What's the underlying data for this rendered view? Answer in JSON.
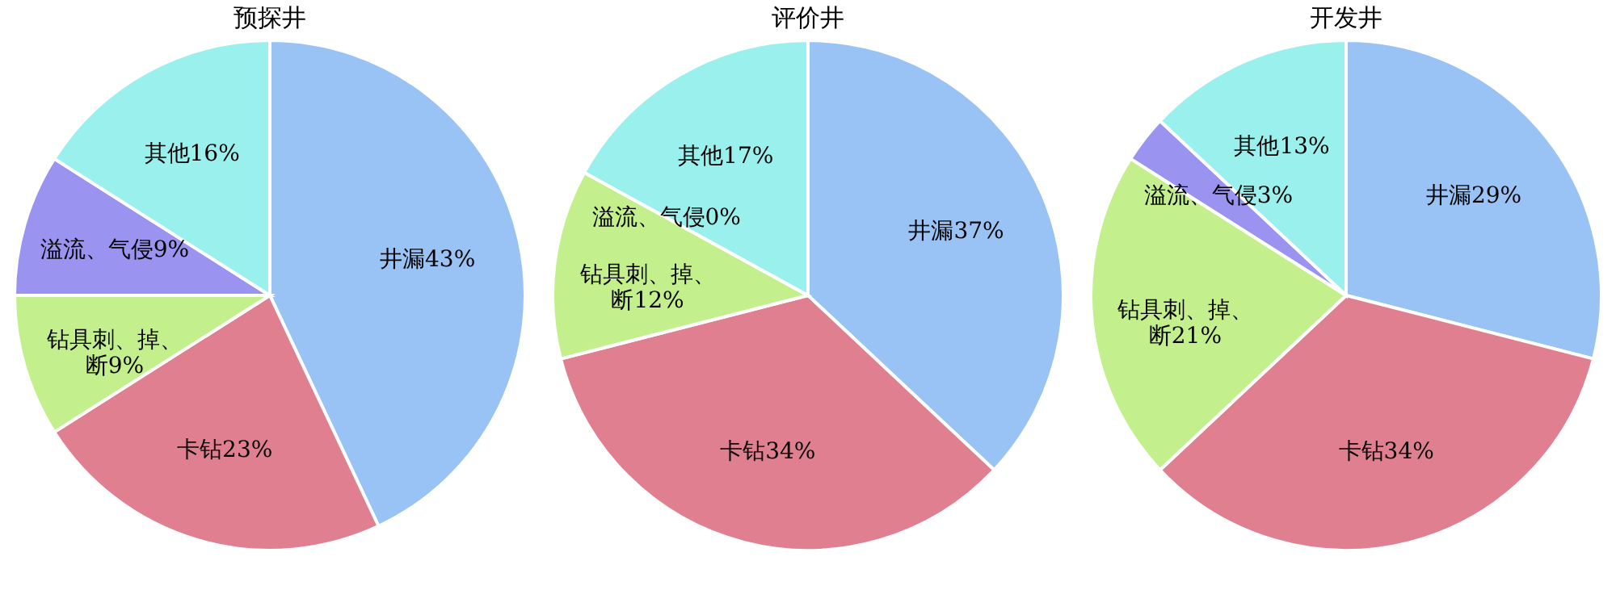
{
  "chart_data": [
    {
      "type": "pie",
      "title": "预探井",
      "categories": [
        "井漏",
        "卡钻",
        "钻具刺、掉、断",
        "溢流、气侵",
        "其他"
      ],
      "values": [
        43,
        23,
        9,
        9,
        16
      ],
      "value_labels": [
        "43%",
        "23%",
        "9%",
        "9%",
        "16%"
      ],
      "colors": [
        "#99c2f5",
        "#e07f90",
        "#c3f08c",
        "#9b93f0",
        "#9af0ec"
      ]
    },
    {
      "type": "pie",
      "title": "评价井",
      "categories": [
        "井漏",
        "卡钻",
        "钻具刺、掉、断",
        "溢流、气侵",
        "其他"
      ],
      "values": [
        37,
        34,
        12,
        0,
        17
      ],
      "value_labels": [
        "37%",
        "34%",
        "12%",
        "0%",
        "17%"
      ],
      "colors": [
        "#99c2f5",
        "#e07f90",
        "#c3f08c",
        "#9b93f0",
        "#9af0ec"
      ]
    },
    {
      "type": "pie",
      "title": "开发井",
      "categories": [
        "井漏",
        "卡钻",
        "钻具刺、掉、断",
        "溢流、气侵",
        "其他"
      ],
      "values": [
        29,
        34,
        21,
        3,
        13
      ],
      "value_labels": [
        "29%",
        "34%",
        "21%",
        "3%",
        "13%"
      ],
      "colors": [
        "#99c2f5",
        "#e07f90",
        "#c3f08c",
        "#9b93f0",
        "#9af0ec"
      ]
    }
  ]
}
